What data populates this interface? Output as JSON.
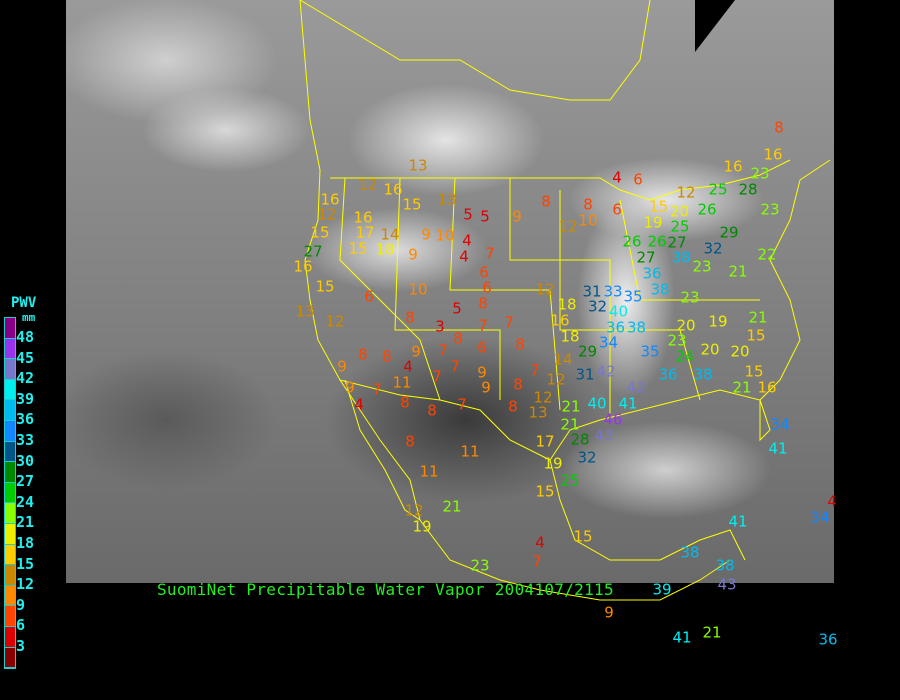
{
  "caption": "SuomiNet Precipitable Water Vapor 2004107/2115",
  "legend": {
    "title": "PWV",
    "unit": "mm",
    "ticks": [
      "48",
      "45",
      "42",
      "39",
      "36",
      "33",
      "30",
      "27",
      "24",
      "21",
      "18",
      "15",
      "12",
      "9",
      "6",
      "3"
    ],
    "colors": [
      "#880088",
      "#9933ee",
      "#7777cc",
      "#00eeee",
      "#00bbee",
      "#1188ff",
      "#005588",
      "#008800",
      "#00cc00",
      "#88ff00",
      "#eeee00",
      "#ffcc00",
      "#cc8800",
      "#ff8800",
      "#ff4400",
      "#dd0000",
      "#880000"
    ]
  },
  "stations": [
    13,
    4,
    6,
    8,
    16,
    16,
    12,
    16,
    15,
    13,
    5,
    5,
    9,
    8,
    8,
    6,
    12,
    10,
    12,
    15,
    19,
    20,
    25,
    28,
    23,
    26,
    23,
    16,
    12,
    16,
    15,
    17,
    14,
    9,
    10,
    4,
    4,
    7,
    15,
    18,
    9,
    27,
    16,
    26,
    26,
    27,
    25,
    27,
    32,
    29,
    23,
    21,
    22,
    36,
    38,
    6,
    6,
    12,
    15,
    13,
    12,
    6,
    10,
    5,
    8,
    31,
    33,
    32,
    40,
    35,
    38,
    23,
    18,
    16,
    8,
    3,
    8,
    6,
    7,
    7,
    36,
    38,
    34,
    20,
    19,
    21,
    15,
    18,
    14,
    29,
    23,
    24,
    20,
    20,
    35,
    9,
    8,
    8,
    4,
    7,
    9,
    7,
    8,
    9,
    8,
    12,
    31,
    42,
    7,
    9,
    7,
    11,
    7,
    9,
    4,
    8,
    8,
    7,
    12,
    13,
    8,
    21,
    40,
    41,
    42,
    21,
    36,
    38,
    15,
    16,
    8,
    11,
    17,
    21,
    43,
    46,
    28,
    32,
    19,
    25,
    15,
    11,
    21,
    12,
    19,
    4,
    15,
    7,
    23,
    9,
    39,
    38,
    38,
    41,
    43,
    41,
    21,
    34,
    4,
    41,
    34,
    36
  ]
}
